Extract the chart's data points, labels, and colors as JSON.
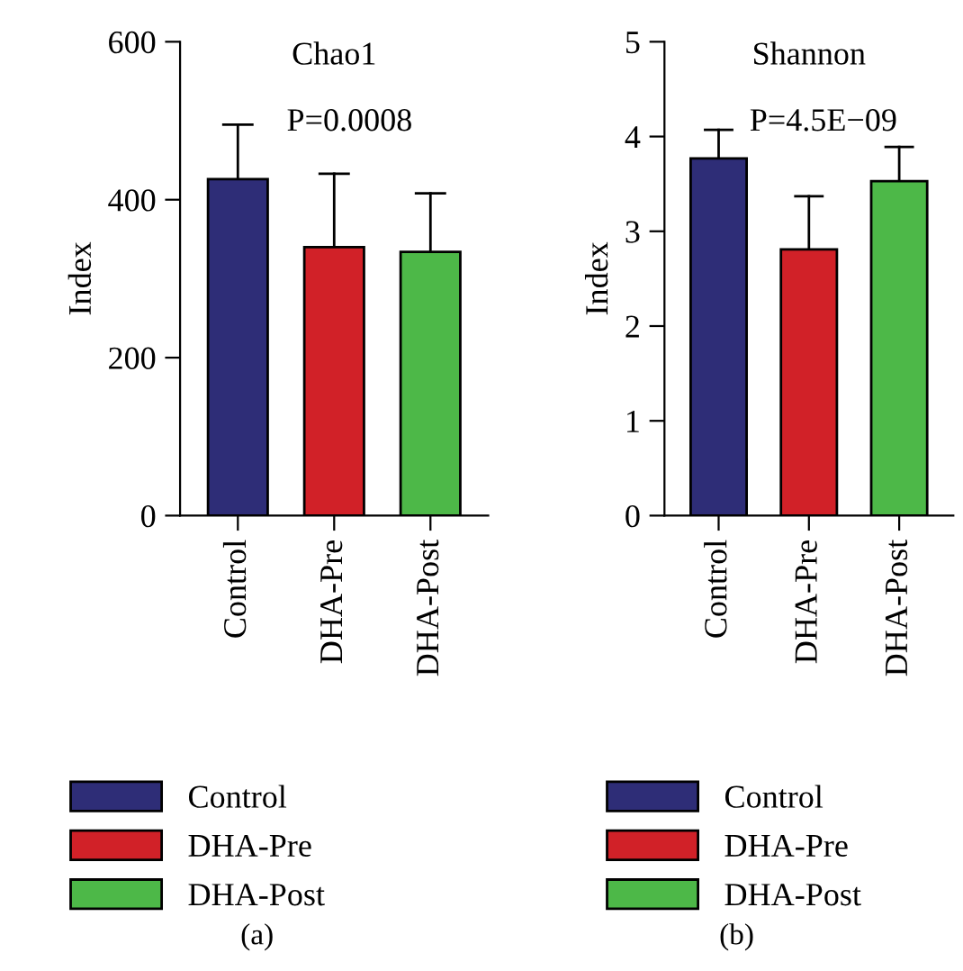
{
  "chart_data": [
    {
      "type": "bar",
      "title": "Chao1",
      "ylabel": "Index",
      "categories": [
        "Control",
        "DHA-Pre",
        "DHA-Post"
      ],
      "series": [
        {
          "name": "Control",
          "color": "#2e2d77",
          "values": [
            426,
            null,
            null
          ],
          "errors": [
            [
              426,
              495
            ],
            null,
            null
          ]
        },
        {
          "name": "DHA-Pre",
          "color": "#d12128",
          "values": [
            null,
            340,
            null
          ],
          "errors": [
            null,
            [
              340,
              433
            ],
            null
          ]
        },
        {
          "name": "DHA-Post",
          "color": "#4db848",
          "values": [
            null,
            null,
            334
          ],
          "errors": [
            null,
            null,
            [
              334,
              408
            ]
          ]
        }
      ],
      "ylim": [
        0,
        600
      ],
      "yticks": [
        0,
        200,
        400,
        600
      ],
      "annotations": [
        "P=0.0008",
        "(a)"
      ],
      "legend": "bottom",
      "grid": false
    },
    {
      "type": "bar",
      "title": "Shannon",
      "ylabel": "Index",
      "categories": [
        "Control",
        "DHA-Pre",
        "DHA-Post"
      ],
      "series": [
        {
          "name": "Control",
          "color": "#2e2d77",
          "values": [
            3.77,
            null,
            null
          ],
          "errors": [
            [
              3.77,
              4.07
            ],
            null,
            null
          ]
        },
        {
          "name": "DHA-Pre",
          "color": "#d12128",
          "values": [
            null,
            2.81,
            null
          ],
          "errors": [
            null,
            [
              2.81,
              3.37
            ],
            null
          ]
        },
        {
          "name": "DHA-Post",
          "color": "#4db848",
          "values": [
            null,
            null,
            3.53
          ],
          "errors": [
            null,
            null,
            [
              3.53,
              3.89
            ]
          ]
        }
      ],
      "ylim": [
        0,
        5
      ],
      "yticks": [
        0,
        1,
        2,
        3,
        4,
        5
      ],
      "annotations": [
        "P=4.5E−09",
        "(b)"
      ],
      "legend": "bottom",
      "grid": false
    }
  ]
}
